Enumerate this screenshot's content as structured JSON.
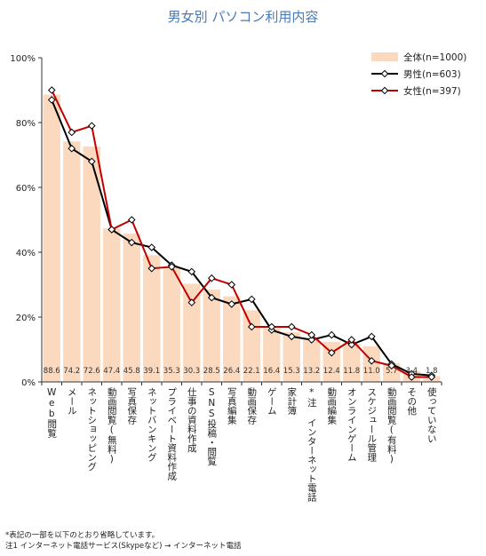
{
  "chart_data": {
    "type": "bar",
    "title": "男女別 パソコン利用内容",
    "ylim": [
      0,
      100
    ],
    "yticks": [
      "0%",
      "20%",
      "40%",
      "60%",
      "80%",
      "100%"
    ],
    "grid": false,
    "legend_position": "top-right",
    "categories": [
      "Web閲覧",
      "メール",
      "ネットショッピング",
      "動画閲覧(無料)",
      "写真保存",
      "ネットバンキング",
      "プライベート資料作成",
      "仕事の資料作成",
      "SNS投稿・閲覧",
      "写真編集",
      "動画保存",
      "ゲーム",
      "家計簿",
      "*注 インターネット電話",
      "動画編集",
      "オンラインゲーム",
      "スケジュール管理",
      "動画閲覧(有料)",
      "その他",
      "使っていない"
    ],
    "series": [
      {
        "name": "全体(n=1000)",
        "kind": "bar",
        "color": "#fbd9bf",
        "values": [
          88.6,
          74.2,
          72.6,
          47.4,
          45.8,
          39.1,
          35.3,
          30.3,
          28.5,
          26.4,
          22.1,
          16.4,
          15.3,
          13.2,
          12.4,
          11.8,
          11.0,
          5.7,
          3.4,
          1.8
        ]
      },
      {
        "name": "男性(n=603)",
        "kind": "line",
        "color": "#000000",
        "values": [
          87,
          72,
          68,
          47,
          43,
          41.5,
          36,
          34,
          26,
          24,
          25.5,
          16,
          14,
          13,
          14.5,
          11.5,
          14,
          5.5,
          2.5,
          2
        ]
      },
      {
        "name": "女性(n=397)",
        "kind": "line",
        "color": "#c00000",
        "values": [
          90,
          77,
          79,
          47,
          50,
          35,
          35.5,
          24.5,
          32,
          30,
          17,
          17,
          17,
          14.5,
          9,
          13,
          6.5,
          5,
          1.5,
          1.5
        ]
      }
    ]
  },
  "notes": [
    "*表記の一部を以下のとおり省略しています。",
    "注1 インターネット電話サービス(Skypeなど) → インターネット電話"
  ]
}
